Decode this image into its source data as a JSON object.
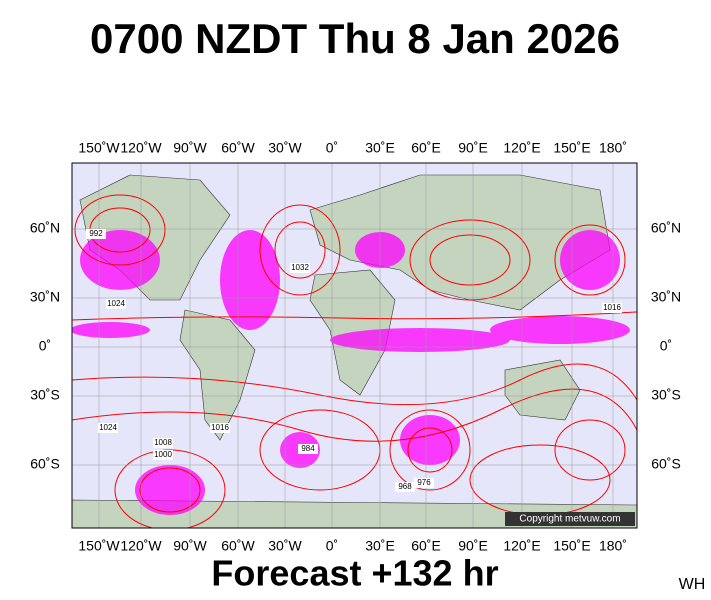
{
  "title": "0700 NZDT Thu 8 Jan 2026",
  "longitudes": [
    "150˚W",
    "120˚W",
    "90˚W",
    "60˚W",
    "30˚W",
    "0˚",
    "30˚E",
    "60˚E",
    "90˚E",
    "120˚E",
    "150˚E",
    "180˚"
  ],
  "latitudes": [
    "60˚N",
    "30˚N",
    "0˚",
    "30˚S",
    "60˚S"
  ],
  "isobar_labels": [
    "1024",
    "1016",
    "1008",
    "1032",
    "1000",
    "992",
    "984",
    "968",
    "976",
    "1024",
    "1016"
  ],
  "copyright": "Copyright metvuw.com",
  "footer": "Forecast +132 hr",
  "corner": "WH"
}
